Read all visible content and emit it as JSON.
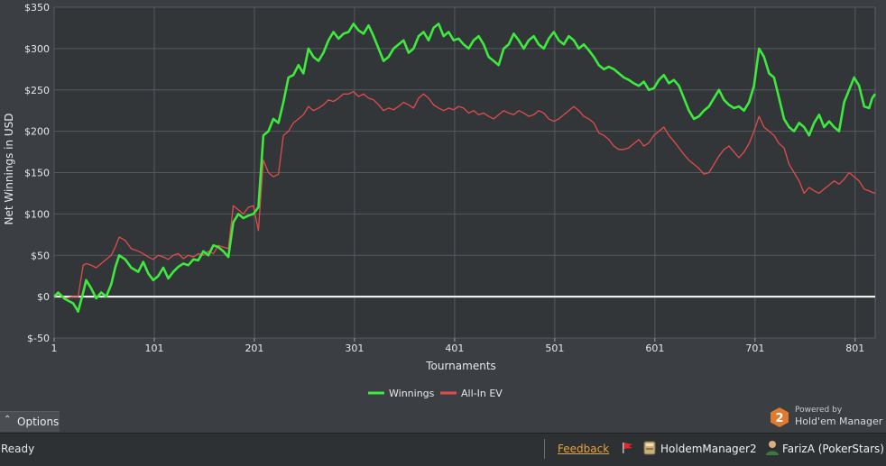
{
  "chart_data": {
    "type": "line",
    "xlabel": "Tournaments",
    "ylabel": "Net Winnings in USD",
    "xlim": [
      1,
      821
    ],
    "ylim": [
      -50,
      350
    ],
    "x_ticks": [
      1,
      101,
      201,
      301,
      401,
      501,
      601,
      701,
      801
    ],
    "x_tick_labels": [
      "1",
      "101",
      "201",
      "301",
      "401",
      "501",
      "601",
      "701",
      "801"
    ],
    "y_ticks": [
      -50,
      0,
      50,
      100,
      150,
      200,
      250,
      300,
      350
    ],
    "y_tick_labels": [
      "$-50",
      "$0",
      "$50",
      "$100",
      "$150",
      "$200",
      "$250",
      "$300",
      "$350"
    ],
    "grid": true,
    "zero_line": true,
    "legend_position": "bottom-center",
    "series": [
      {
        "name": "Winnings",
        "color": "#3dea3d",
        "x": [
          1,
          5,
          12,
          20,
          25,
          30,
          33,
          38,
          43,
          48,
          53,
          58,
          62,
          66,
          72,
          78,
          85,
          90,
          95,
          100,
          105,
          110,
          115,
          120,
          125,
          130,
          135,
          140,
          145,
          150,
          155,
          160,
          165,
          170,
          175,
          180,
          185,
          190,
          195,
          200,
          205,
          210,
          215,
          220,
          225,
          230,
          235,
          240,
          245,
          250,
          255,
          260,
          265,
          270,
          275,
          280,
          285,
          290,
          295,
          300,
          305,
          310,
          315,
          320,
          325,
          330,
          335,
          340,
          345,
          350,
          355,
          360,
          365,
          370,
          375,
          380,
          385,
          390,
          395,
          400,
          405,
          410,
          415,
          420,
          425,
          430,
          435,
          440,
          445,
          450,
          455,
          460,
          465,
          470,
          475,
          480,
          485,
          490,
          495,
          500,
          505,
          510,
          515,
          520,
          525,
          530,
          535,
          540,
          545,
          550,
          555,
          560,
          565,
          570,
          575,
          580,
          585,
          590,
          595,
          600,
          605,
          610,
          615,
          620,
          625,
          630,
          635,
          640,
          645,
          650,
          655,
          660,
          665,
          670,
          675,
          680,
          685,
          690,
          695,
          700,
          705,
          710,
          715,
          720,
          725,
          730,
          735,
          740,
          745,
          750,
          755,
          760,
          765,
          770,
          775,
          780,
          785,
          790,
          795,
          800,
          805,
          810,
          815,
          818,
          821
        ],
        "y": [
          0,
          5,
          -3,
          -8,
          -18,
          5,
          20,
          10,
          -2,
          5,
          0,
          15,
          35,
          50,
          45,
          35,
          30,
          42,
          28,
          20,
          25,
          35,
          22,
          30,
          36,
          40,
          38,
          45,
          44,
          55,
          50,
          62,
          60,
          55,
          48,
          90,
          100,
          95,
          98,
          100,
          108,
          195,
          200,
          215,
          210,
          235,
          265,
          268,
          280,
          270,
          300,
          290,
          285,
          295,
          310,
          320,
          312,
          318,
          320,
          330,
          322,
          318,
          328,
          315,
          300,
          285,
          290,
          300,
          305,
          310,
          295,
          300,
          315,
          320,
          310,
          325,
          330,
          315,
          320,
          310,
          312,
          305,
          300,
          310,
          315,
          305,
          290,
          285,
          280,
          300,
          305,
          318,
          310,
          300,
          310,
          315,
          305,
          300,
          312,
          320,
          310,
          305,
          315,
          310,
          300,
          305,
          298,
          290,
          280,
          275,
          278,
          275,
          270,
          265,
          262,
          258,
          255,
          260,
          250,
          252,
          262,
          268,
          258,
          262,
          255,
          240,
          225,
          215,
          218,
          225,
          230,
          240,
          250,
          238,
          232,
          228,
          230,
          225,
          235,
          255,
          300,
          290,
          270,
          265,
          240,
          215,
          205,
          200,
          210,
          205,
          195,
          210,
          220,
          205,
          212,
          205,
          200,
          235,
          250,
          265,
          255,
          230,
          228,
          240,
          245
        ]
      },
      {
        "name": "All-In EV",
        "color": "#e04c4c",
        "x": [
          1,
          5,
          12,
          20,
          25,
          30,
          33,
          38,
          43,
          48,
          53,
          58,
          62,
          66,
          72,
          78,
          85,
          90,
          95,
          100,
          105,
          110,
          115,
          120,
          125,
          130,
          135,
          140,
          145,
          150,
          155,
          160,
          165,
          170,
          175,
          180,
          185,
          190,
          195,
          200,
          205,
          210,
          215,
          220,
          225,
          230,
          235,
          240,
          245,
          250,
          255,
          260,
          265,
          270,
          275,
          280,
          285,
          290,
          295,
          300,
          305,
          310,
          315,
          320,
          325,
          330,
          335,
          340,
          345,
          350,
          355,
          360,
          365,
          370,
          375,
          380,
          385,
          390,
          395,
          400,
          405,
          410,
          415,
          420,
          425,
          430,
          435,
          440,
          445,
          450,
          455,
          460,
          465,
          470,
          475,
          480,
          485,
          490,
          495,
          500,
          505,
          510,
          515,
          520,
          525,
          530,
          535,
          540,
          545,
          550,
          555,
          560,
          565,
          570,
          575,
          580,
          585,
          590,
          595,
          600,
          605,
          610,
          615,
          620,
          625,
          630,
          635,
          640,
          645,
          650,
          655,
          660,
          665,
          670,
          675,
          680,
          685,
          690,
          695,
          700,
          705,
          710,
          715,
          720,
          725,
          730,
          735,
          740,
          745,
          750,
          755,
          760,
          765,
          770,
          775,
          780,
          785,
          790,
          795,
          800,
          805,
          810,
          815,
          818,
          821
        ],
        "y": [
          0,
          3,
          -2,
          0,
          0,
          38,
          40,
          38,
          35,
          40,
          45,
          50,
          60,
          72,
          68,
          58,
          55,
          52,
          48,
          45,
          50,
          48,
          45,
          50,
          52,
          46,
          50,
          48,
          52,
          50,
          55,
          52,
          62,
          60,
          58,
          110,
          105,
          100,
          108,
          110,
          80,
          165,
          150,
          145,
          148,
          195,
          200,
          210,
          215,
          220,
          230,
          225,
          228,
          232,
          238,
          236,
          240,
          245,
          245,
          248,
          242,
          245,
          240,
          238,
          232,
          225,
          228,
          226,
          230,
          235,
          232,
          228,
          240,
          245,
          240,
          232,
          228,
          225,
          228,
          226,
          230,
          228,
          222,
          225,
          220,
          222,
          218,
          215,
          220,
          225,
          222,
          220,
          225,
          222,
          218,
          220,
          225,
          222,
          215,
          212,
          215,
          220,
          225,
          230,
          225,
          218,
          215,
          210,
          198,
          195,
          190,
          182,
          178,
          178,
          180,
          185,
          190,
          182,
          186,
          195,
          200,
          205,
          195,
          188,
          180,
          172,
          165,
          160,
          155,
          148,
          150,
          160,
          170,
          178,
          182,
          175,
          168,
          175,
          185,
          200,
          218,
          205,
          200,
          195,
          185,
          180,
          160,
          150,
          140,
          125,
          132,
          128,
          125,
          130,
          135,
          140,
          136,
          142,
          150,
          145,
          140,
          130,
          128,
          126,
          125
        ]
      }
    ]
  },
  "options": {
    "label": "Options",
    "arrow": "⌃"
  },
  "powered_by": {
    "line1": "Powered by",
    "line2": "Hold'em Manager",
    "logo_text": "2"
  },
  "status": {
    "ready": "Ready",
    "feedback": "Feedback",
    "app": "HoldemManager2",
    "player": "FarizA (PokerStars)"
  },
  "colors": {
    "background": "#3b3f43",
    "grid": "#55595d",
    "zero_line": "#ffffff",
    "feedback": "#e8a23a"
  }
}
